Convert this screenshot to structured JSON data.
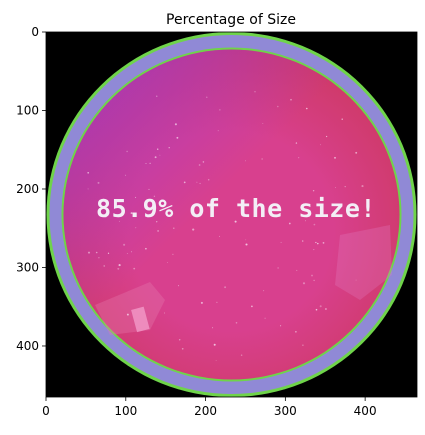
{
  "chart_data": {
    "type": "image",
    "title": "Percentage of Size",
    "xlabel": "",
    "ylabel": "",
    "xlim": [
      0,
      465
    ],
    "ylim": [
      465,
      0
    ],
    "x_ticks": [
      0,
      100,
      200,
      300,
      400
    ],
    "y_ticks": [
      0,
      100,
      200,
      300,
      400
    ],
    "grid": false,
    "image_overlay_text": "85.9% of the size!",
    "colors": {
      "background": "#000000",
      "outer_ring": "#9089d6",
      "ring_edge": "#6fd44a",
      "disc_center": "#d8408e",
      "disc_upper_left": "#9a38d8",
      "disc_lower": "#cf3a6a",
      "text": "#f3eef6"
    }
  }
}
